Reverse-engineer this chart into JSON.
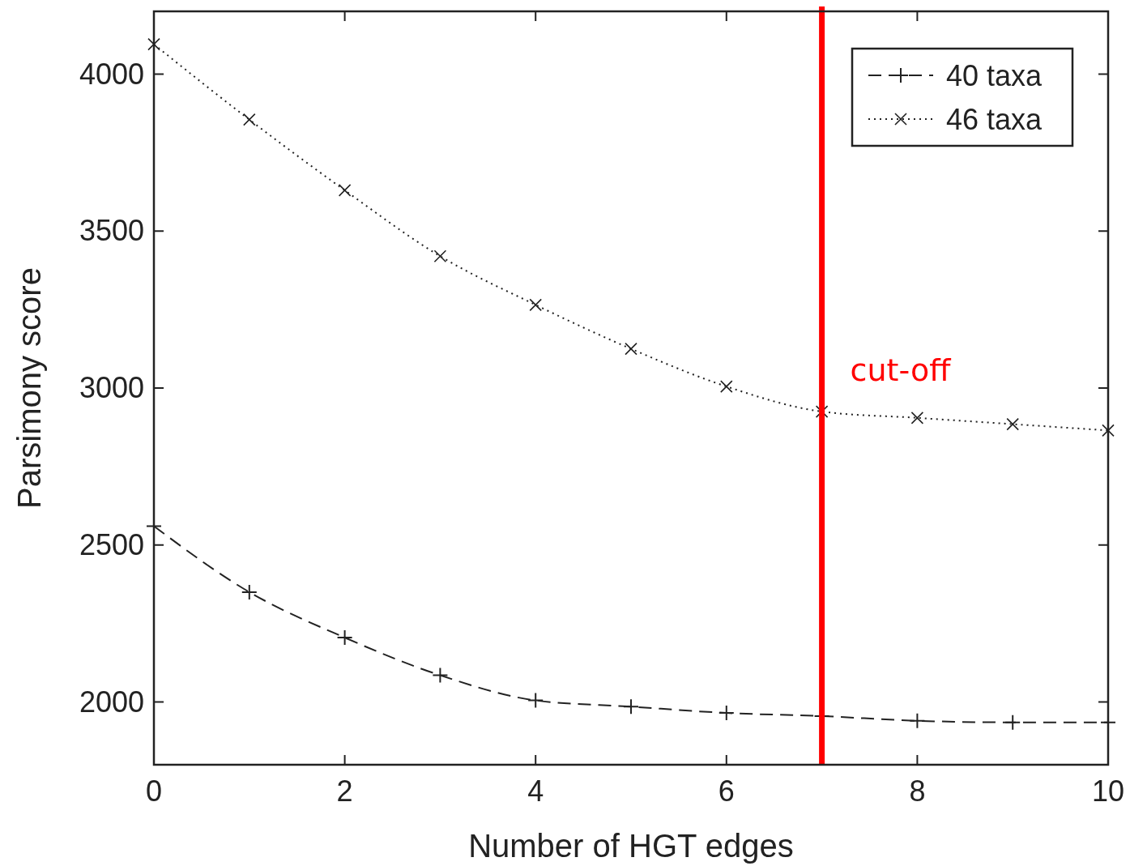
{
  "chart_data": {
    "type": "line",
    "xlabel": "Number of HGT edges",
    "ylabel": "Parsimony score",
    "x": [
      0,
      1,
      2,
      3,
      4,
      5,
      6,
      7,
      8,
      9,
      10
    ],
    "series": [
      {
        "name": "40 taxa",
        "color": "#222222",
        "marker": "cross",
        "line_style": "dashed",
        "values": [
          2560,
          2350,
          2205,
          2085,
          2005,
          1985,
          1965,
          1955,
          1940,
          1935,
          1935
        ]
      },
      {
        "name": "46 taxa",
        "color": "#222222",
        "marker": "x",
        "line_style": "dotted",
        "values": [
          4095,
          3855,
          3630,
          3420,
          3265,
          3125,
          3005,
          2925,
          2905,
          2885,
          2865
        ]
      }
    ],
    "xlim": [
      0,
      10
    ],
    "xticks": [
      0,
      2,
      4,
      6,
      8,
      10
    ],
    "ylim": [
      1800,
      4200
    ],
    "yticks": [
      2000,
      2500,
      3000,
      3500,
      4000
    ],
    "ref_lines": [
      {
        "axis": "x",
        "value": 7,
        "label": "cut-off",
        "color": "#ff0000"
      }
    ],
    "legend": "top right",
    "grid": false
  }
}
